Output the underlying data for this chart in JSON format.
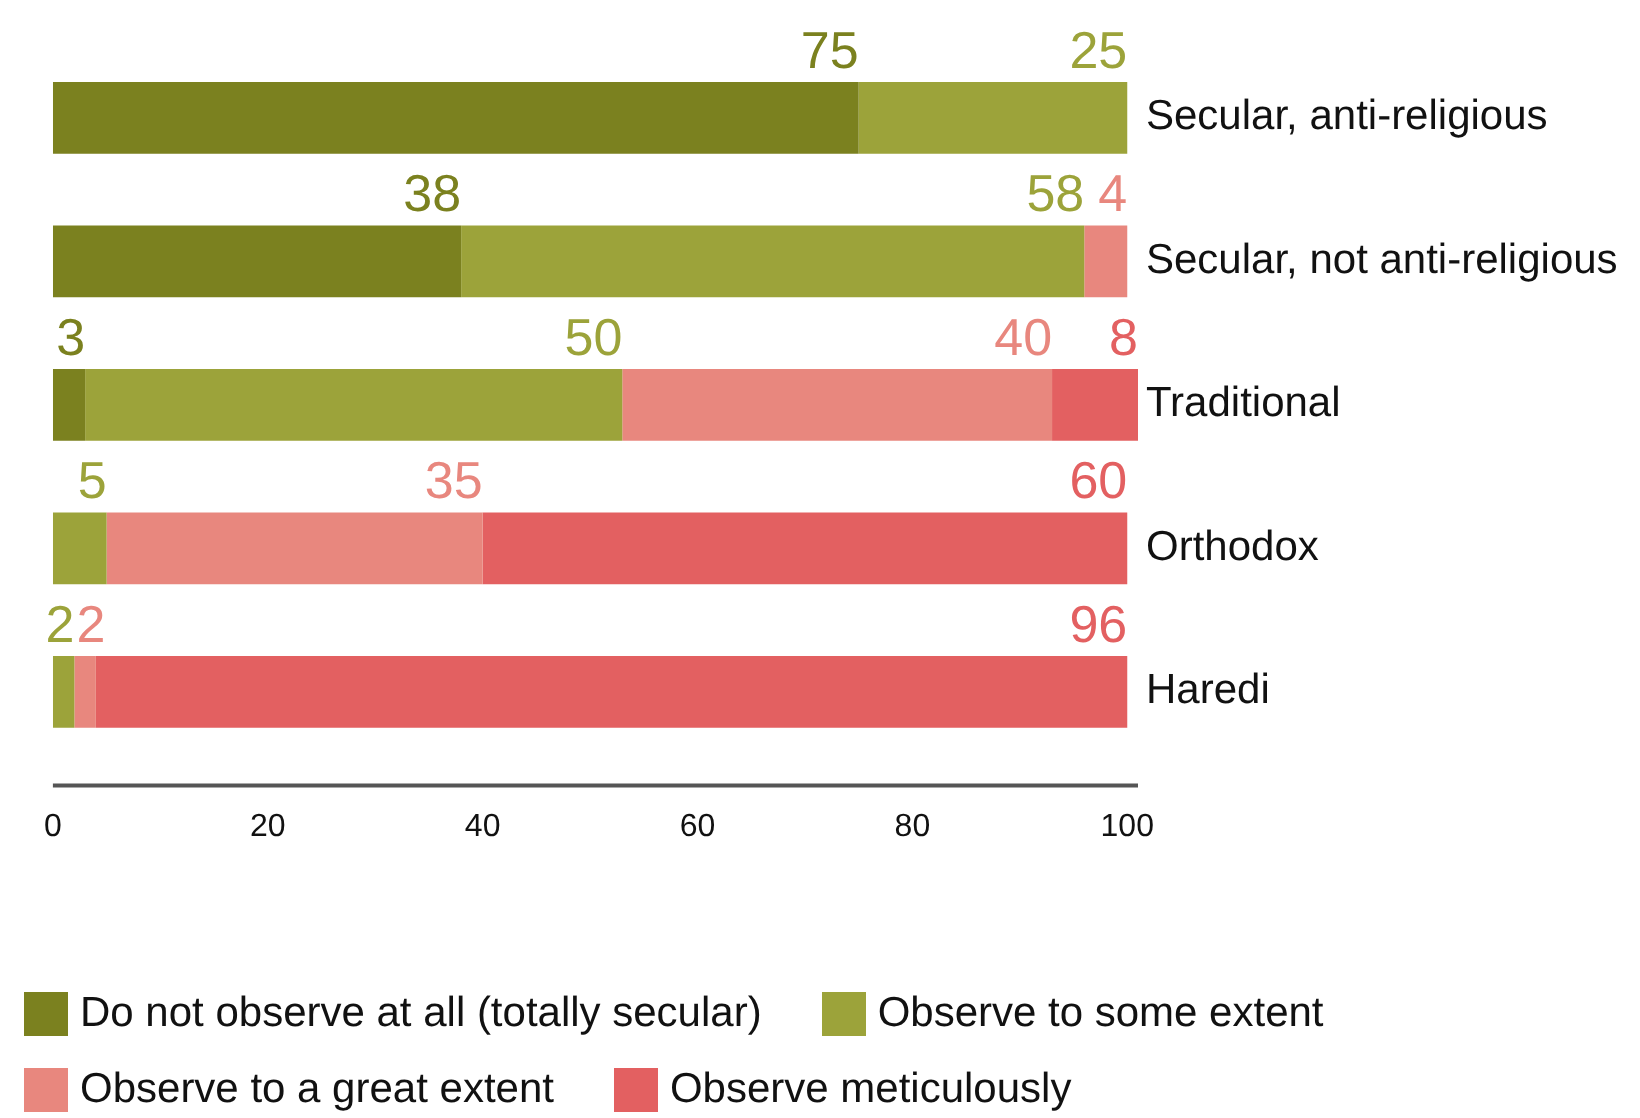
{
  "chart_data": {
    "type": "bar",
    "orientation": "horizontal",
    "stacked": true,
    "categories": [
      "Secular, anti-religious",
      "Secular, not anti-religious",
      "Traditional",
      "Orthodox",
      "Haredi"
    ],
    "series": [
      {
        "name": "Do not observe at all (totally secular)",
        "color": "#7b811f",
        "values": [
          75,
          38,
          3,
          null,
          null
        ]
      },
      {
        "name": "Observe to some extent",
        "color": "#9ca33a",
        "values": [
          25,
          58,
          50,
          5,
          2
        ]
      },
      {
        "name": "Observe to a great extent",
        "color": "#e8877e",
        "values": [
          null,
          4,
          40,
          35,
          2
        ]
      },
      {
        "name": "Observe meticulously",
        "color": "#e36061",
        "values": [
          null,
          null,
          8,
          60,
          96
        ]
      }
    ],
    "xlim": [
      0,
      101
    ],
    "xticks": [
      0,
      20,
      40,
      60,
      80,
      100
    ],
    "grid": false,
    "legend": "bottom",
    "data_labels": true
  }
}
